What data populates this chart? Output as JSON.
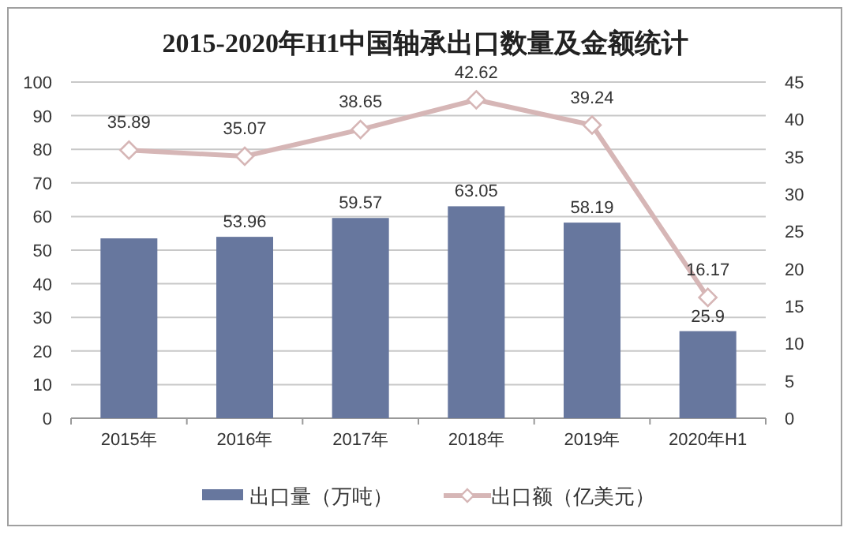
{
  "chart_data": {
    "type": "bar",
    "title": "2015-2020年H1中国轴承出口数量及金额统计",
    "categories": [
      "2015年",
      "2016年",
      "2017年",
      "2018年",
      "2019年",
      "2020年H1"
    ],
    "series": [
      {
        "name": "出口量（万吨）",
        "color": "#67779e",
        "values": [
          53.5,
          53.96,
          59.57,
          63.05,
          58.19,
          25.9
        ],
        "value_labels": [
          null,
          "53.96",
          "59.57",
          "63.05",
          "58.19",
          "25.9"
        ]
      },
      {
        "name": "出口额（亿美元）",
        "type": "line",
        "axis": "y2",
        "color": "#d6b6b6",
        "values": [
          35.89,
          35.07,
          38.65,
          42.62,
          39.24,
          16.17
        ],
        "value_labels": [
          "35.89",
          "35.07",
          "38.65",
          "42.62",
          "39.24",
          "16.17"
        ]
      }
    ],
    "ylim": [
      0,
      100
    ],
    "yticks": [
      0,
      10,
      20,
      30,
      40,
      50,
      60,
      70,
      80,
      90,
      100
    ],
    "y2lim": [
      0,
      45
    ],
    "y2ticks": [
      0,
      5,
      10,
      15,
      20,
      25,
      30,
      35,
      40,
      45
    ],
    "grid": "y",
    "legend": "bottom",
    "marker": "diamond"
  }
}
